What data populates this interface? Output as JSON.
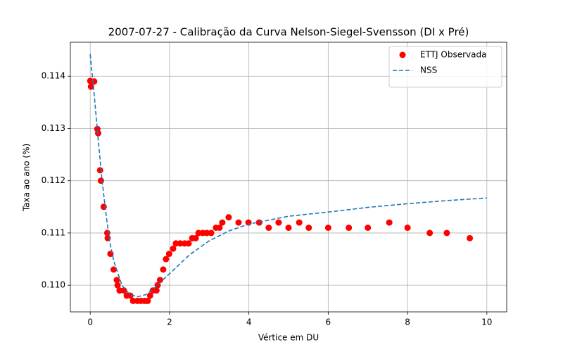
{
  "chart_data": {
    "type": "scatter",
    "title": "2007-07-27 - Calibração da Curva Nelson-Siegel-Svensson (DI x Pré)",
    "x_label": "Vértice em DU",
    "y_label": "Taxa ao ano (%)",
    "xlim": [
      -0.5,
      10.5
    ],
    "ylim": [
      0.10949,
      0.11465
    ],
    "xticks": [
      0,
      2,
      4,
      6,
      8,
      10
    ],
    "yticks": [
      {
        "value": 0.11,
        "label": "0.110"
      },
      {
        "value": 0.111,
        "label": "0.111"
      },
      {
        "value": 0.112,
        "label": "0.112"
      },
      {
        "value": 0.113,
        "label": "0.113"
      },
      {
        "value": 0.114,
        "label": "0.114"
      }
    ],
    "grid": true,
    "legend": "upper right",
    "series": [
      {
        "name": "ETTJ Observada",
        "type": "scatter",
        "color": "#ff0000",
        "x": [
          0,
          0.02,
          0.1,
          0.18,
          0.2,
          0.25,
          0.27,
          0.34,
          0.43,
          0.44,
          0.51,
          0.59,
          0.67,
          0.69,
          0.74,
          0.85,
          0.92,
          1.01,
          1.08,
          1.19,
          1.28,
          1.37,
          1.45,
          1.51,
          1.58,
          1.67,
          1.7,
          1.76,
          1.84,
          1.91,
          1.99,
          2.09,
          2.16,
          2.27,
          2.38,
          2.48,
          2.57,
          2.66,
          2.73,
          2.84,
          2.94,
          3.05,
          3.17,
          3.26,
          3.33,
          3.49,
          3.74,
          3.99,
          4.26,
          4.5,
          4.75,
          5.0,
          5.27,
          5.51,
          6.0,
          6.52,
          7.0,
          7.54,
          8.0,
          8.56,
          8.99,
          9.57
        ],
        "values": [
          0.11391,
          0.1138,
          0.1139,
          0.11299,
          0.11291,
          0.1122,
          0.112,
          0.1115,
          0.111,
          0.1109,
          0.1106,
          0.1103,
          0.1101,
          0.11,
          0.1099,
          0.1099,
          0.1098,
          0.1098,
          0.1097,
          0.1097,
          0.1097,
          0.1097,
          0.1097,
          0.1098,
          0.1099,
          0.1099,
          0.11,
          0.1101,
          0.1103,
          0.1105,
          0.1106,
          0.1107,
          0.1108,
          0.1108,
          0.1108,
          0.1108,
          0.1109,
          0.1109,
          0.111,
          0.111,
          0.111,
          0.111,
          0.1111,
          0.1111,
          0.1112,
          0.1113,
          0.1112,
          0.1112,
          0.1112,
          0.1111,
          0.1112,
          0.1111,
          0.1112,
          0.1111,
          0.1111,
          0.1111,
          0.1111,
          0.1112,
          0.1111,
          0.111,
          0.111,
          0.1109
        ]
      },
      {
        "name": "NSS",
        "type": "line",
        "color": "#1f77b4",
        "x": [
          0,
          0.1,
          0.2,
          0.3,
          0.4,
          0.5,
          0.6,
          0.8,
          1.0,
          1.2,
          1.4,
          1.6,
          1.8,
          2.0,
          2.5,
          3,
          3.5,
          4,
          5,
          6,
          7,
          8,
          9,
          10
        ],
        "values": [
          0.11442,
          0.11365,
          0.1128,
          0.112,
          0.11135,
          0.1108,
          0.11045,
          0.11,
          0.10982,
          0.10978,
          0.10982,
          0.10993,
          0.11008,
          0.11022,
          0.11058,
          0.11085,
          0.11104,
          0.11117,
          0.11132,
          0.1114,
          0.11149,
          0.11156,
          0.11162,
          0.11167
        ]
      }
    ]
  }
}
